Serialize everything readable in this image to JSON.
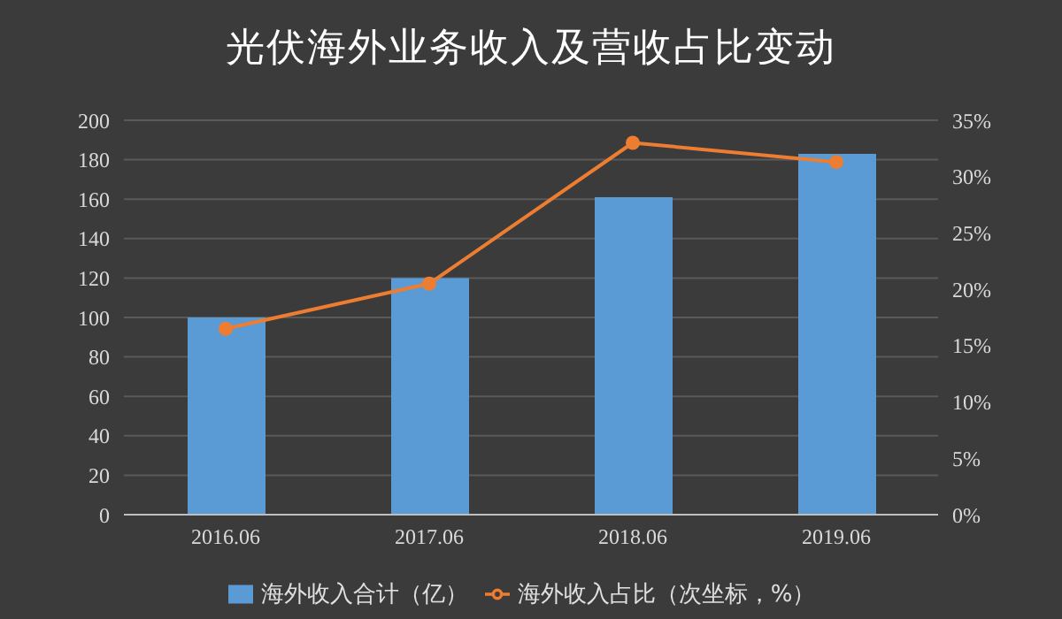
{
  "chart_data": {
    "type": "bar",
    "title": "光伏海外业务收入及营收占比变动",
    "categories": [
      "2016.06",
      "2017.06",
      "2018.06",
      "2019.06"
    ],
    "series": [
      {
        "name": "海外收入合计（亿）",
        "color": "#5b9bd5",
        "values": [
          100,
          120,
          161,
          183
        ]
      },
      {
        "name": "海外收入占比（次坐标，%）",
        "type": "line",
        "axis": "y2",
        "color": "#ed7d31",
        "values": [
          16.5,
          20.5,
          33,
          31.3
        ]
      }
    ],
    "ylim": [
      0,
      200
    ],
    "yticks": [
      0,
      20,
      40,
      60,
      80,
      100,
      120,
      140,
      160,
      180,
      200
    ],
    "y2lim": [
      0,
      35
    ],
    "y2ticks": [
      {
        "value": 0,
        "label": "0%"
      },
      {
        "value": 5,
        "label": "5%"
      },
      {
        "value": 10,
        "label": "10%"
      },
      {
        "value": 15,
        "label": "15%"
      },
      {
        "value": 20,
        "label": "20%"
      },
      {
        "value": 25,
        "label": "25%"
      },
      {
        "value": 30,
        "label": "30%"
      },
      {
        "value": 35,
        "label": "35%"
      }
    ],
    "grid": "y",
    "legend": "bottom",
    "marker": "circle"
  }
}
